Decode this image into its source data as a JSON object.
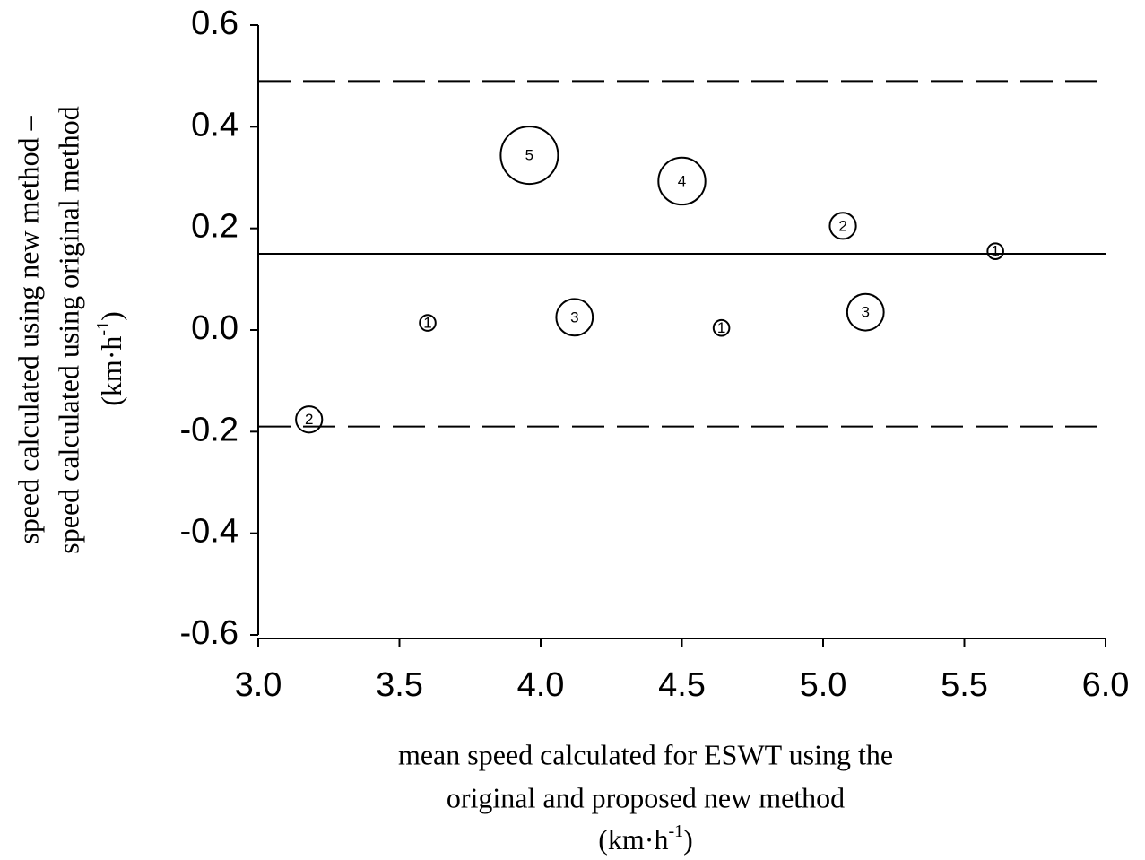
{
  "chart_data": {
    "type": "scatter",
    "xlabel": [
      "mean speed calculated for ESWT using the",
      "original and proposed new method"
    ],
    "xunit": [
      "(km·h",
      "-1",
      ")"
    ],
    "ylabel": [
      "speed calculated using new method –",
      "speed calculated using original method"
    ],
    "yunit": [
      "(km·h",
      "-1",
      ")"
    ],
    "x": [
      3.18,
      3.6,
      3.96,
      4.12,
      4.5,
      4.64,
      5.07,
      5.15,
      5.61
    ],
    "series": [
      {
        "color": "#000000",
        "values": [
          -0.176,
          0.014,
          0.344,
          0.025,
          0.293,
          0.004,
          0.205,
          0.035,
          0.155
        ],
        "sizes": [
          2,
          1,
          5,
          3,
          4,
          1,
          2,
          3,
          1
        ]
      }
    ],
    "hlines": [
      {
        "value": 0.15,
        "style": "solid"
      },
      {
        "value": 0.49,
        "style": "dashed"
      },
      {
        "value": -0.19,
        "style": "dashed"
      }
    ],
    "xlim": [
      3.0,
      6.0
    ],
    "xticks": [
      {
        "value": 3,
        "label": "3.0"
      },
      3.5,
      {
        "value": 4,
        "label": "4.0"
      },
      4.5,
      {
        "value": 5,
        "label": "5.0"
      },
      5.5,
      {
        "value": 6,
        "label": "6.0"
      }
    ],
    "ylim": [
      -0.6,
      0.6
    ],
    "yticks": [
      -0.6,
      -0.4,
      -0.2,
      {
        "value": 0,
        "label": "0.0"
      },
      0.2,
      0.4,
      0.6
    ]
  }
}
